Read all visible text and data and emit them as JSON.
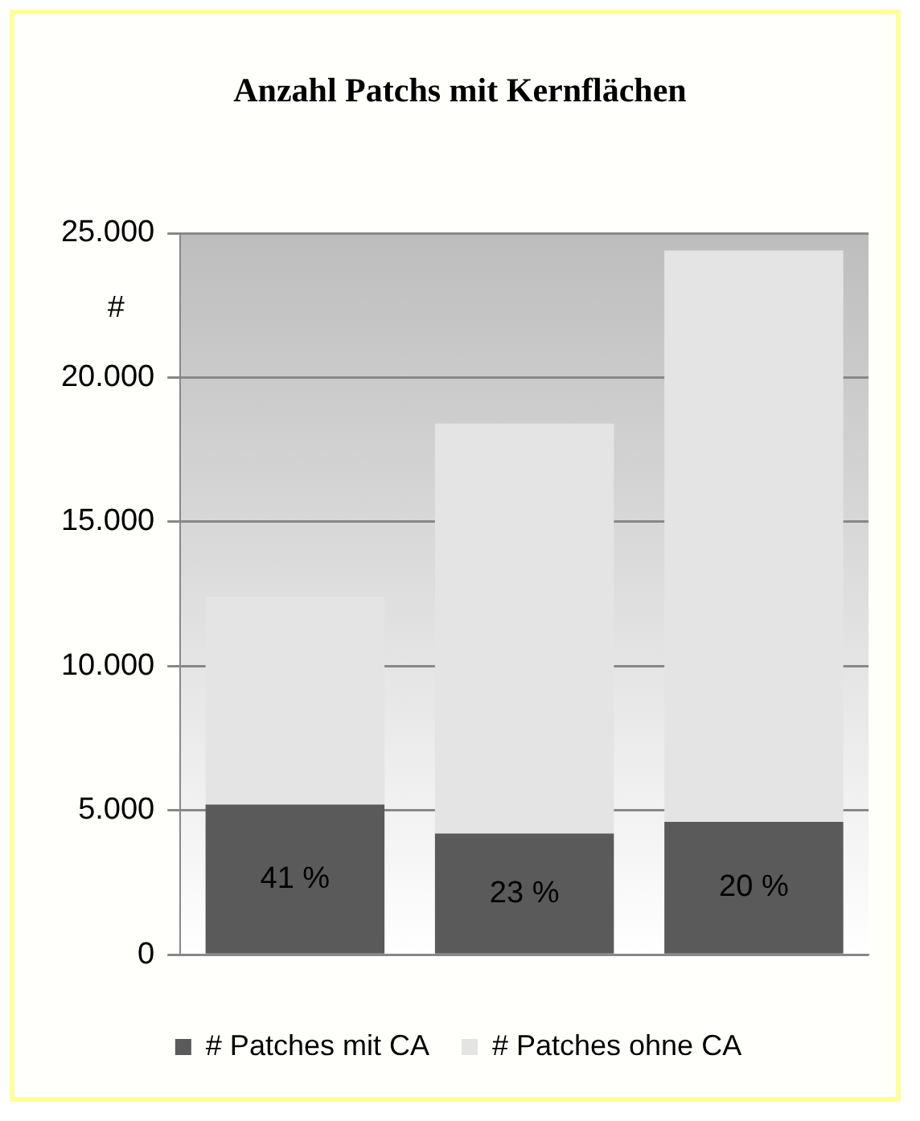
{
  "chart_data": {
    "type": "bar",
    "title": "Anzahl Patchs mit Kernflächen",
    "ylabel": "#",
    "categories": [
      null,
      null,
      null
    ],
    "stacked": true,
    "series": [
      {
        "name": "# Patches mit CA",
        "color": "#5a5a5a",
        "values": [
          5200,
          4200,
          4600
        ]
      },
      {
        "name": "# Patches ohne CA",
        "color": "#e4e4e4",
        "values": [
          7200,
          14200,
          19800
        ]
      }
    ],
    "ylim": [
      0,
      25000
    ],
    "yticks": [
      {
        "value": 0,
        "label": "0"
      },
      {
        "value": 5000,
        "label": "5.000"
      },
      {
        "value": 10000,
        "label": "10.000"
      },
      {
        "value": 15000,
        "label": "15.000"
      },
      {
        "value": 20000,
        "label": "20.000"
      },
      {
        "value": 25000,
        "label": "25.000"
      }
    ],
    "annotations": [
      "41 %",
      "23 %",
      "20 %"
    ],
    "grid": "y",
    "legend": "bottom"
  }
}
